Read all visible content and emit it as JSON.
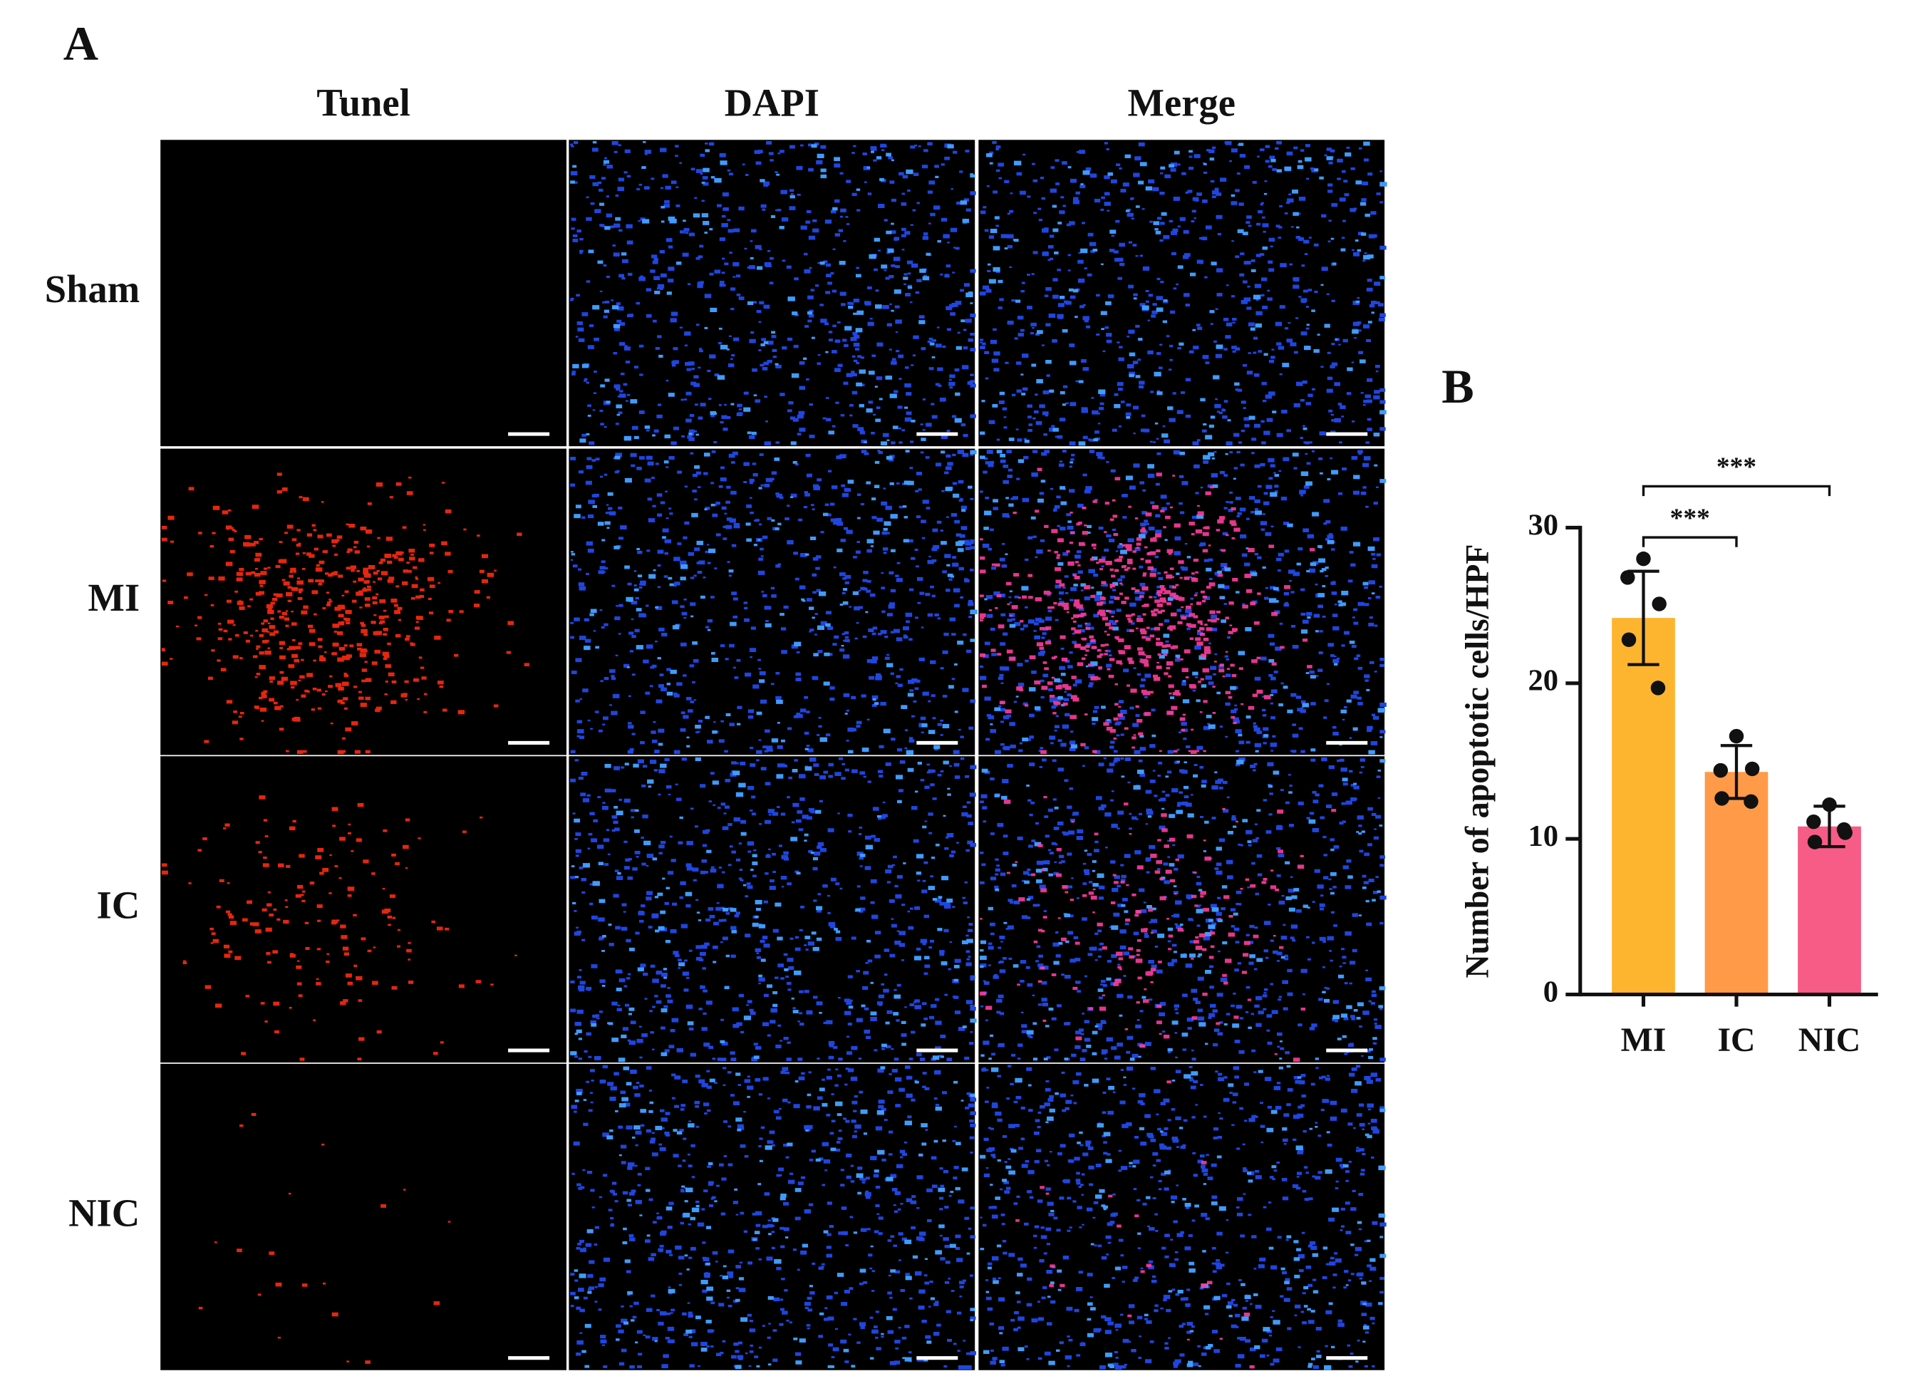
{
  "panel_a": {
    "label": "A",
    "columns": [
      "Tunel",
      "DAPI",
      "Merge"
    ],
    "rows": [
      "Sham",
      "MI",
      "IC",
      "NIC"
    ]
  },
  "chart_data": {
    "type": "bar",
    "panel_label": "B",
    "y_label": "Number of apoptotic cells/HPF",
    "categories": [
      "MI",
      "IC",
      "NIC"
    ],
    "values": [
      24.2,
      14.3,
      10.8
    ],
    "errors": [
      3.0,
      1.7,
      1.3
    ],
    "colors": [
      "#fdb530",
      "#ff9a48",
      "#f75c86"
    ],
    "points": [
      [
        28.0,
        26.8,
        25.1,
        22.8,
        19.7
      ],
      [
        16.6,
        14.4,
        14.5,
        12.6,
        12.4
      ],
      [
        12.2,
        11.1,
        10.4,
        9.8,
        10.6
      ]
    ],
    "ylim": [
      0,
      30
    ],
    "yticks": [
      0,
      10,
      20,
      30
    ],
    "annotations": [
      {
        "text": "***",
        "from": "MI",
        "to": "IC"
      },
      {
        "text": "***",
        "from": "MI",
        "to": "NIC"
      }
    ]
  }
}
